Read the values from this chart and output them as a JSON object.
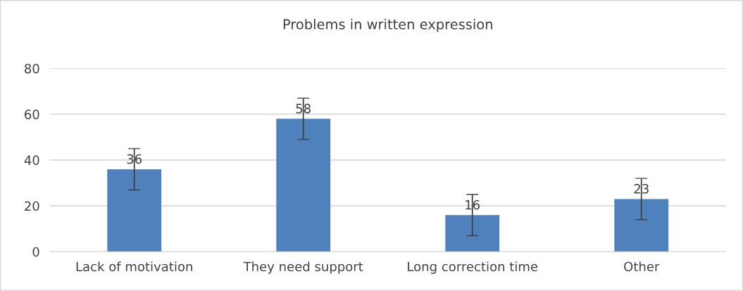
{
  "chart_data": {
    "type": "bar",
    "title": "Problems in written expression",
    "categories": [
      "Lack of motivation",
      "They need support",
      "Long correction time",
      "Other"
    ],
    "values": [
      36,
      58,
      16,
      23
    ],
    "errors": [
      9,
      9,
      9,
      9
    ],
    "color": "#4f81bd",
    "ylim": [
      0,
      80
    ],
    "yticks": [
      0,
      20,
      40,
      60,
      80
    ],
    "grid": "y",
    "data_labels": true
  }
}
